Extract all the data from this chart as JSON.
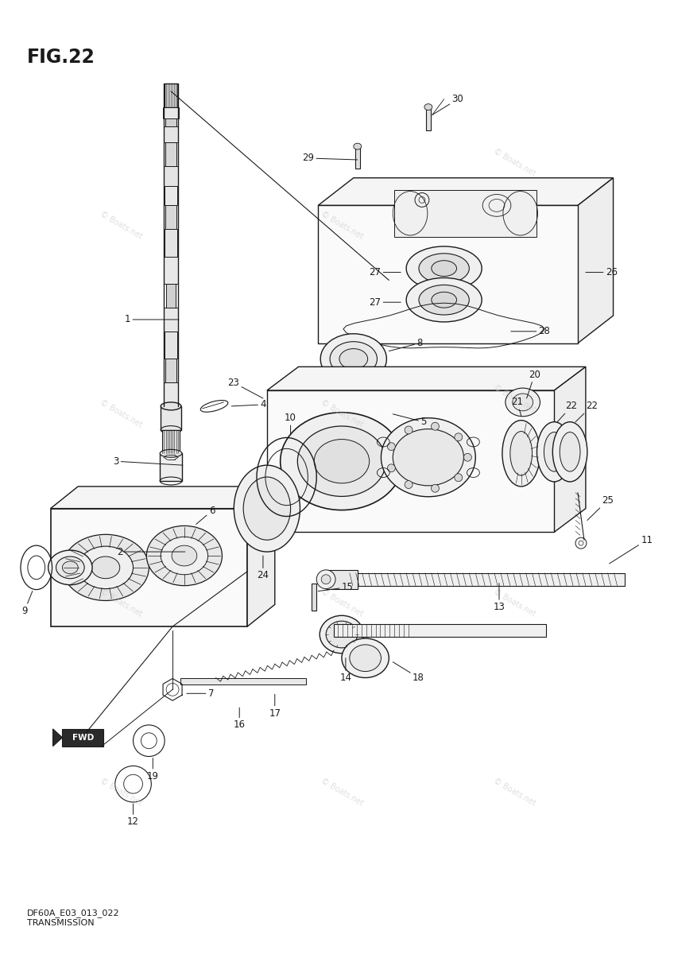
{
  "title": "FIG.22",
  "subtitle_line1": "DF60A_E03_013_022",
  "subtitle_line2": "TRANSMISSION",
  "watermark": "© Boats.net",
  "bg_color": "#ffffff",
  "line_color": "#1a1a1a",
  "fig_width": 8.48,
  "fig_height": 12.0
}
